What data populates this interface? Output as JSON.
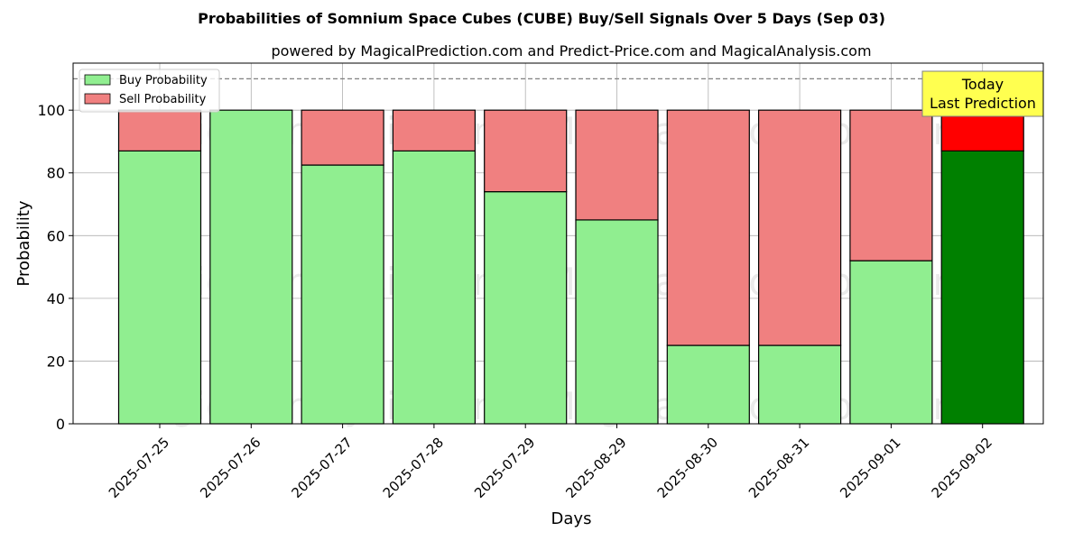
{
  "chart_data": {
    "type": "bar",
    "stacked": true,
    "title": "Probabilities of Somnium Space Cubes (CUBE) Buy/Sell Signals Over 5 Days (Sep 03)",
    "subtitle": "powered by MagicalPrediction.com and Predict-Price.com and MagicalAnalysis.com",
    "xlabel": "Days",
    "ylabel": "Probability",
    "ylim": [
      0,
      115
    ],
    "yticks": [
      0,
      20,
      40,
      60,
      80,
      100
    ],
    "categories": [
      "2025-07-25",
      "2025-07-26",
      "2025-07-27",
      "2025-07-28",
      "2025-07-29",
      "2025-08-29",
      "2025-08-30",
      "2025-08-31",
      "2025-09-01",
      "2025-09-02"
    ],
    "series": [
      {
        "name": "Buy Probability",
        "values": [
          87,
          100,
          82.5,
          87,
          74,
          65,
          25,
          25,
          52,
          87
        ]
      },
      {
        "name": "Sell Probability",
        "values": [
          13,
          0,
          17.5,
          13,
          26,
          35,
          75,
          75,
          48,
          13
        ]
      }
    ],
    "reference_line": 110,
    "legend_position": "top-left",
    "grid": true,
    "annotation": {
      "line1": "Today",
      "line2": "Last Prediction"
    },
    "watermarks": [
      "MagicalAnalysis.com",
      "MagicalPrediction.com"
    ],
    "colors": {
      "buy": "#90ee90",
      "sell": "#f08080",
      "buy_highlight": "#008000",
      "sell_highlight": "#ff0000",
      "annotation_bg": "#ffff50"
    }
  }
}
